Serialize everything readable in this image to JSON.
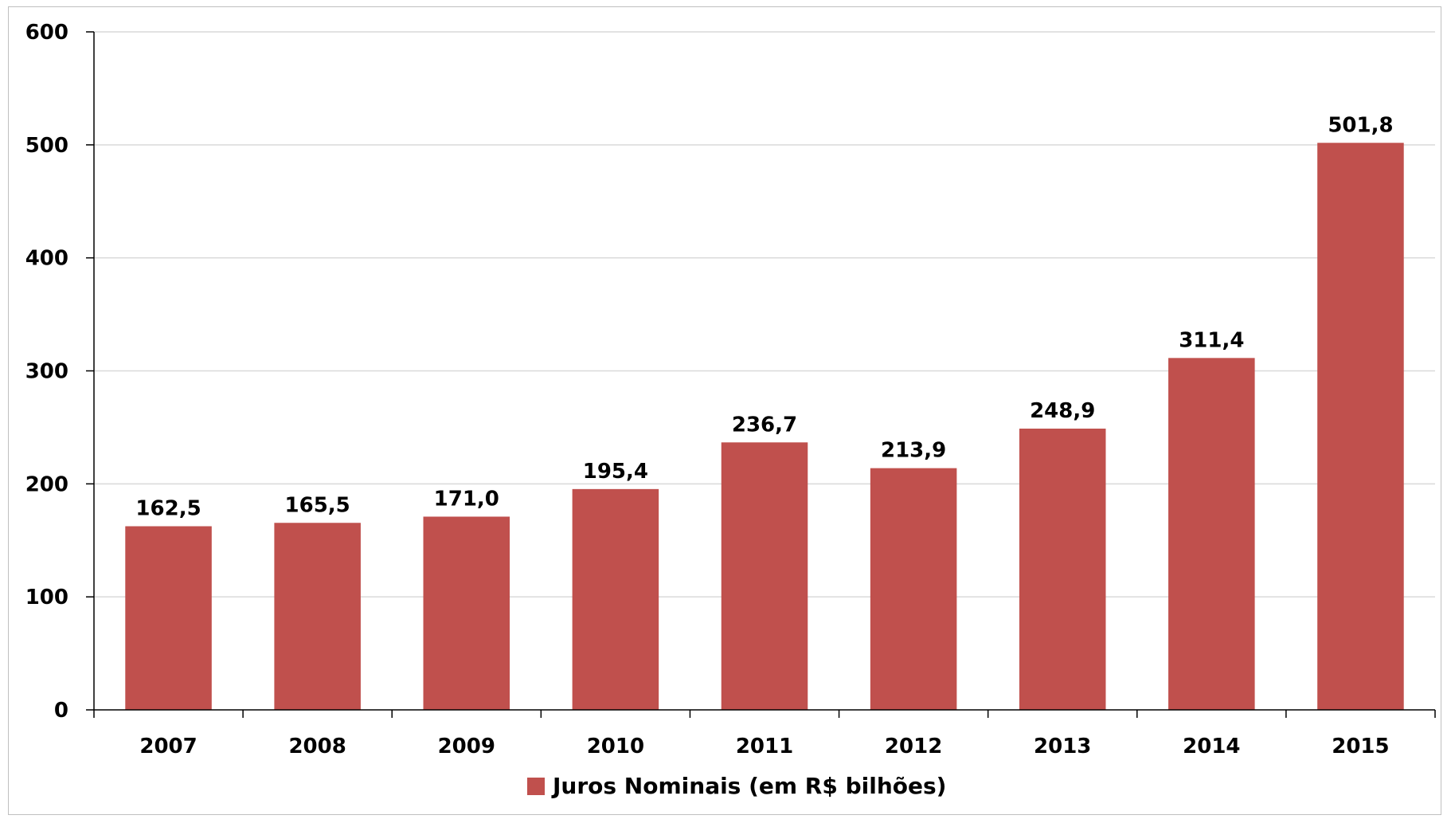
{
  "chart_data": {
    "type": "bar",
    "categories": [
      "2007",
      "2008",
      "2009",
      "2010",
      "2011",
      "2012",
      "2013",
      "2014",
      "2015"
    ],
    "series": [
      {
        "name": "Juros Nominais (em R$ bilhões)",
        "values": [
          162.5,
          165.5,
          171.0,
          195.4,
          236.7,
          213.9,
          248.9,
          311.4,
          501.8
        ],
        "value_labels": [
          "162,5",
          "165,5",
          "171,0",
          "195,4",
          "236,7",
          "213,9",
          "248,9",
          "311,4",
          "501,8"
        ],
        "color": "#c0504d"
      }
    ],
    "title": "",
    "xlabel": "",
    "ylabel": "",
    "ylim": [
      0,
      600
    ],
    "yticks": [
      0,
      100,
      200,
      300,
      400,
      500,
      600
    ],
    "grid": true,
    "legend": "bottom-center"
  }
}
